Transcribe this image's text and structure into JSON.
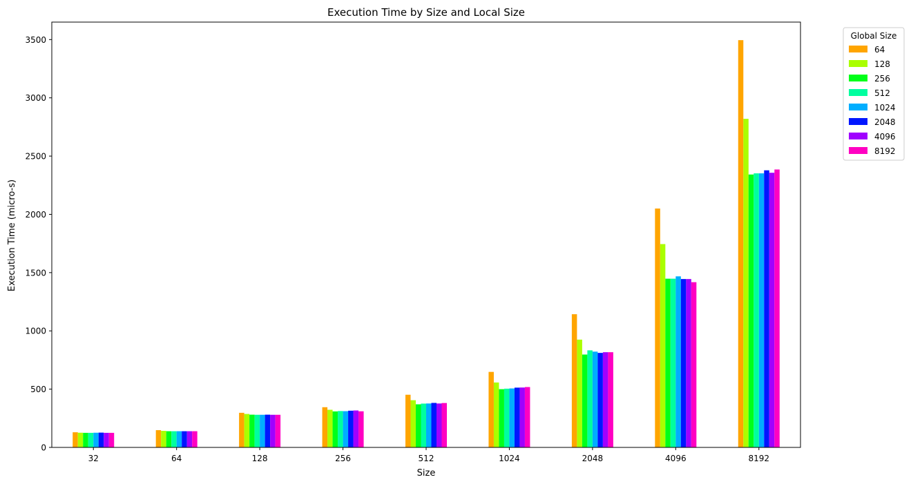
{
  "chart_data": {
    "type": "bar",
    "title": "Execution Time by Size and Local Size",
    "xlabel": "Size",
    "ylabel": "Execution Time (micro-s)",
    "ylim": [
      0,
      3650
    ],
    "yticks": [
      0,
      500,
      1000,
      1500,
      2000,
      2500,
      3000,
      3500
    ],
    "grid": false,
    "legend_title": "Global Size",
    "legend_position": "outside-top-right",
    "categories": [
      "32",
      "64",
      "128",
      "256",
      "512",
      "1024",
      "2048",
      "4096",
      "8192"
    ],
    "series": [
      {
        "name": "64",
        "color": "#ffa500",
        "values": [
          130,
          148,
          297,
          345,
          452,
          648,
          1143,
          2050,
          3495
        ]
      },
      {
        "name": "128",
        "color": "#aaff00",
        "values": [
          126,
          142,
          287,
          323,
          405,
          557,
          925,
          1745,
          2820
        ]
      },
      {
        "name": "256",
        "color": "#00ff1a",
        "values": [
          125,
          139,
          281,
          309,
          370,
          500,
          797,
          1448,
          2342
        ]
      },
      {
        "name": "512",
        "color": "#00ff9f",
        "values": [
          125,
          139,
          280,
          312,
          376,
          504,
          833,
          1448,
          2352
        ]
      },
      {
        "name": "1024",
        "color": "#00aeff",
        "values": [
          126,
          139,
          280,
          311,
          377,
          506,
          822,
          1468,
          2352
        ]
      },
      {
        "name": "2048",
        "color": "#0016ff",
        "values": [
          127,
          139,
          281,
          315,
          382,
          513,
          811,
          1445,
          2378
        ]
      },
      {
        "name": "4096",
        "color": "#a000ff",
        "values": [
          125,
          139,
          280,
          317,
          377,
          514,
          817,
          1445,
          2357
        ]
      },
      {
        "name": "8192",
        "color": "#ff00c2",
        "values": [
          125,
          139,
          280,
          310,
          381,
          518,
          817,
          1418,
          2385
        ]
      }
    ]
  }
}
